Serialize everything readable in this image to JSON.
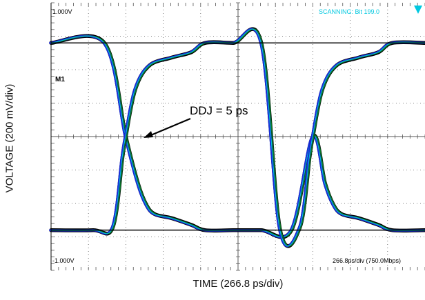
{
  "chart_data": {
    "type": "line",
    "title": "",
    "xlabel": "TIME (266.8 ps/div)",
    "ylabel": "VOLTAGE (200 mV/div)",
    "x_unit": "ps",
    "y_unit": "mV",
    "xlim": [
      0,
      2668
    ],
    "ylim": [
      -1000,
      1000
    ],
    "grid": true,
    "screen_text": {
      "top_left": "1.000V",
      "top_right": "SCANNING: Bit 199.0",
      "bottom_left": "-1.000V",
      "bottom_right": "266.8ps/div (750.0Mbps)",
      "marker": "M1"
    },
    "annotation": {
      "text": "DDJ = 5 ps",
      "x": 533,
      "y": 0
    },
    "levels": {
      "high": 700,
      "low": -700
    },
    "crossings_ps": [
      533,
      1868
    ],
    "series": [
      {
        "name": "",
        "x": [
          0,
          380,
          533,
          620,
          680,
          740,
          860,
          1000,
          1100,
          1300,
          1500,
          1715,
          1868,
          1955,
          2015,
          2075,
          2195,
          2335,
          2435,
          2668
        ],
        "y": [
          700,
          700,
          0,
          -350,
          -510,
          -580,
          -610,
          -660,
          -700,
          -700,
          -700,
          -700,
          0,
          -350,
          -510,
          -580,
          -610,
          -660,
          -700,
          -700
        ]
      },
      {
        "name": "",
        "x": [
          0,
          300,
          440,
          510,
          533,
          600,
          700,
          860,
          1000,
          1100,
          1300,
          1500,
          1635,
          1775,
          1845,
          1868,
          1935,
          2035,
          2195,
          2335,
          2435,
          2668
        ],
        "y": [
          -700,
          -700,
          -680,
          -150,
          0,
          350,
          530,
          590,
          630,
          700,
          700,
          700,
          -700,
          -680,
          -150,
          0,
          350,
          530,
          590,
          630,
          700,
          700
        ]
      }
    ]
  }
}
